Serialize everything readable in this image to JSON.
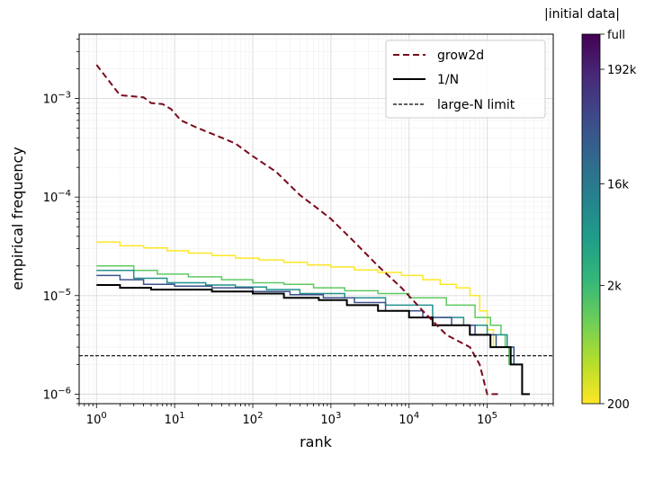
{
  "chart_data": {
    "type": "line",
    "xlabel": "rank",
    "ylabel": "empirical frequency",
    "xscale": "log",
    "yscale": "log",
    "xlim": [
      0.6,
      700000
    ],
    "ylim": [
      8e-07,
      0.0045
    ],
    "grid": true,
    "legend": {
      "placement": "top-right",
      "entries": [
        {
          "label": "grow2d",
          "style": "dashed",
          "color": "#7a0a1e"
        },
        {
          "label": "1/N",
          "style": "solid",
          "color": "#000000"
        },
        {
          "label": "large-N limit",
          "style": "dashed-thin",
          "color": "#000000"
        }
      ]
    },
    "x_ticks": [
      {
        "value": 1,
        "base": "10",
        "exp": "0"
      },
      {
        "value": 10,
        "base": "10",
        "exp": "1"
      },
      {
        "value": 100,
        "base": "10",
        "exp": "2"
      },
      {
        "value": 1000,
        "base": "10",
        "exp": "3"
      },
      {
        "value": 10000,
        "base": "10",
        "exp": "4"
      },
      {
        "value": 100000,
        "base": "10",
        "exp": "5"
      }
    ],
    "y_ticks": [
      {
        "value": 1e-06,
        "base": "10",
        "exp": "−6"
      },
      {
        "value": 1e-05,
        "base": "10",
        "exp": "−5"
      },
      {
        "value": 0.0001,
        "base": "10",
        "exp": "−4"
      },
      {
        "value": 0.001,
        "base": "10",
        "exp": "−3"
      }
    ],
    "large_n_limit": 2.45e-06,
    "series": [
      {
        "kind": "step",
        "color": "#fde725",
        "width": 1.5,
        "points": [
          [
            1,
            3.5e-05
          ],
          [
            2,
            3.2e-05
          ],
          [
            4,
            3.05e-05
          ],
          [
            8,
            2.85e-05
          ],
          [
            15,
            2.7e-05
          ],
          [
            30,
            2.55e-05
          ],
          [
            60,
            2.4e-05
          ],
          [
            120,
            2.3e-05
          ],
          [
            250,
            2.18e-05
          ],
          [
            500,
            2.05e-05
          ],
          [
            1000,
            1.95e-05
          ],
          [
            2000,
            1.82e-05
          ],
          [
            4000,
            1.72e-05
          ],
          [
            8000,
            1.6e-05
          ],
          [
            15000,
            1.45e-05
          ],
          [
            25000,
            1.3e-05
          ],
          [
            40000,
            1.2e-05
          ],
          [
            60000,
            1e-05
          ],
          [
            80000,
            7e-06
          ],
          [
            100000,
            4.5e-06
          ],
          [
            120000,
            3e-06
          ],
          [
            130000,
            3e-06
          ]
        ]
      },
      {
        "kind": "step",
        "color": "#5ec962",
        "width": 1.5,
        "points": [
          [
            1,
            2e-05
          ],
          [
            3,
            1.8e-05
          ],
          [
            6,
            1.65e-05
          ],
          [
            15,
            1.55e-05
          ],
          [
            40,
            1.45e-05
          ],
          [
            100,
            1.35e-05
          ],
          [
            250,
            1.3e-05
          ],
          [
            600,
            1.2e-05
          ],
          [
            1500,
            1.12e-05
          ],
          [
            4000,
            1.05e-05
          ],
          [
            10000,
            9.5e-06
          ],
          [
            30000,
            8e-06
          ],
          [
            70000,
            6e-06
          ],
          [
            110000,
            5e-06
          ],
          [
            150000,
            4e-06
          ],
          [
            170000,
            3e-06
          ],
          [
            190000,
            2e-06
          ],
          [
            210000,
            2e-06
          ]
        ]
      },
      {
        "kind": "step",
        "color": "#21918c",
        "width": 1.5,
        "points": [
          [
            1,
            1.8e-05
          ],
          [
            3,
            1.5e-05
          ],
          [
            8,
            1.35e-05
          ],
          [
            25,
            1.28e-05
          ],
          [
            60,
            1.22e-05
          ],
          [
            150,
            1.15e-05
          ],
          [
            400,
            1.05e-05
          ],
          [
            1500,
            9.5e-06
          ],
          [
            5000,
            8e-06
          ],
          [
            20000,
            6e-06
          ],
          [
            50000,
            5e-06
          ],
          [
            100000,
            4e-06
          ],
          [
            180000,
            3e-06
          ],
          [
            220000,
            2e-06
          ],
          [
            260000,
            2e-06
          ]
        ]
      },
      {
        "kind": "step",
        "color": "#3b528b",
        "width": 1.5,
        "points": [
          [
            1,
            1.6e-05
          ],
          [
            2,
            1.45e-05
          ],
          [
            4,
            1.3e-05
          ],
          [
            10,
            1.25e-05
          ],
          [
            30,
            1.2e-05
          ],
          [
            100,
            1.1e-05
          ],
          [
            300,
            1.02e-05
          ],
          [
            800,
            9.5e-06
          ],
          [
            2000,
            8.5e-06
          ],
          [
            5000,
            7e-06
          ],
          [
            15000,
            6e-06
          ],
          [
            35000,
            5e-06
          ],
          [
            70000,
            4e-06
          ],
          [
            130000,
            3e-06
          ],
          [
            220000,
            2e-06
          ],
          [
            280000,
            1e-06
          ],
          [
            350000,
            1e-06
          ]
        ]
      },
      {
        "kind": "step",
        "color": "#000000",
        "width": 2,
        "points": [
          [
            1,
            1.28e-05
          ],
          [
            2,
            1.2e-05
          ],
          [
            5,
            1.15e-05
          ],
          [
            30,
            1.1e-05
          ],
          [
            100,
            1.05e-05
          ],
          [
            250,
            9.5e-06
          ],
          [
            700,
            9e-06
          ],
          [
            1600,
            8e-06
          ],
          [
            4000,
            7e-06
          ],
          [
            10000,
            6e-06
          ],
          [
            20000,
            5e-06
          ],
          [
            60000,
            4e-06
          ],
          [
            110000,
            3e-06
          ],
          [
            200000,
            2e-06
          ],
          [
            280000,
            1e-06
          ],
          [
            350000,
            1e-06
          ]
        ]
      },
      {
        "kind": "dashed-line",
        "color": "#7a0a1e",
        "width": 2,
        "points": [
          [
            1,
            0.0022
          ],
          [
            2,
            0.00108
          ],
          [
            3,
            0.00105
          ],
          [
            4,
            0.00103
          ],
          [
            5,
            0.0009
          ],
          [
            7,
            0.00088
          ],
          [
            9,
            0.00078
          ],
          [
            12,
            0.0006
          ],
          [
            20,
            0.0005
          ],
          [
            40,
            0.0004
          ],
          [
            60,
            0.00035
          ],
          [
            100,
            0.00026
          ],
          [
            200,
            0.00018
          ],
          [
            400,
            0.000105
          ],
          [
            700,
            7.5e-05
          ],
          [
            1000,
            6e-05
          ],
          [
            2000,
            3.5e-05
          ],
          [
            4000,
            2e-05
          ],
          [
            8000,
            1.2e-05
          ],
          [
            15000,
            7e-06
          ],
          [
            30000,
            4e-06
          ],
          [
            60000,
            3e-06
          ],
          [
            80000,
            2e-06
          ],
          [
            100000,
            1e-06
          ],
          [
            140000,
            1e-06
          ]
        ]
      }
    ]
  },
  "colorbar": {
    "title": "|initial data|",
    "labels": [
      {
        "text": "full",
        "frac": 1.0
      },
      {
        "text": "192k",
        "frac": 0.905
      },
      {
        "text": "16k",
        "frac": 0.595
      },
      {
        "text": "2k",
        "frac": 0.32
      },
      {
        "text": "200",
        "frac": 0.0
      }
    ],
    "gradient": [
      "#fde725",
      "#b5de2b",
      "#6ece58",
      "#35b779",
      "#1f9e89",
      "#26828e",
      "#31688e",
      "#3e4989",
      "#482878",
      "#440154"
    ]
  }
}
